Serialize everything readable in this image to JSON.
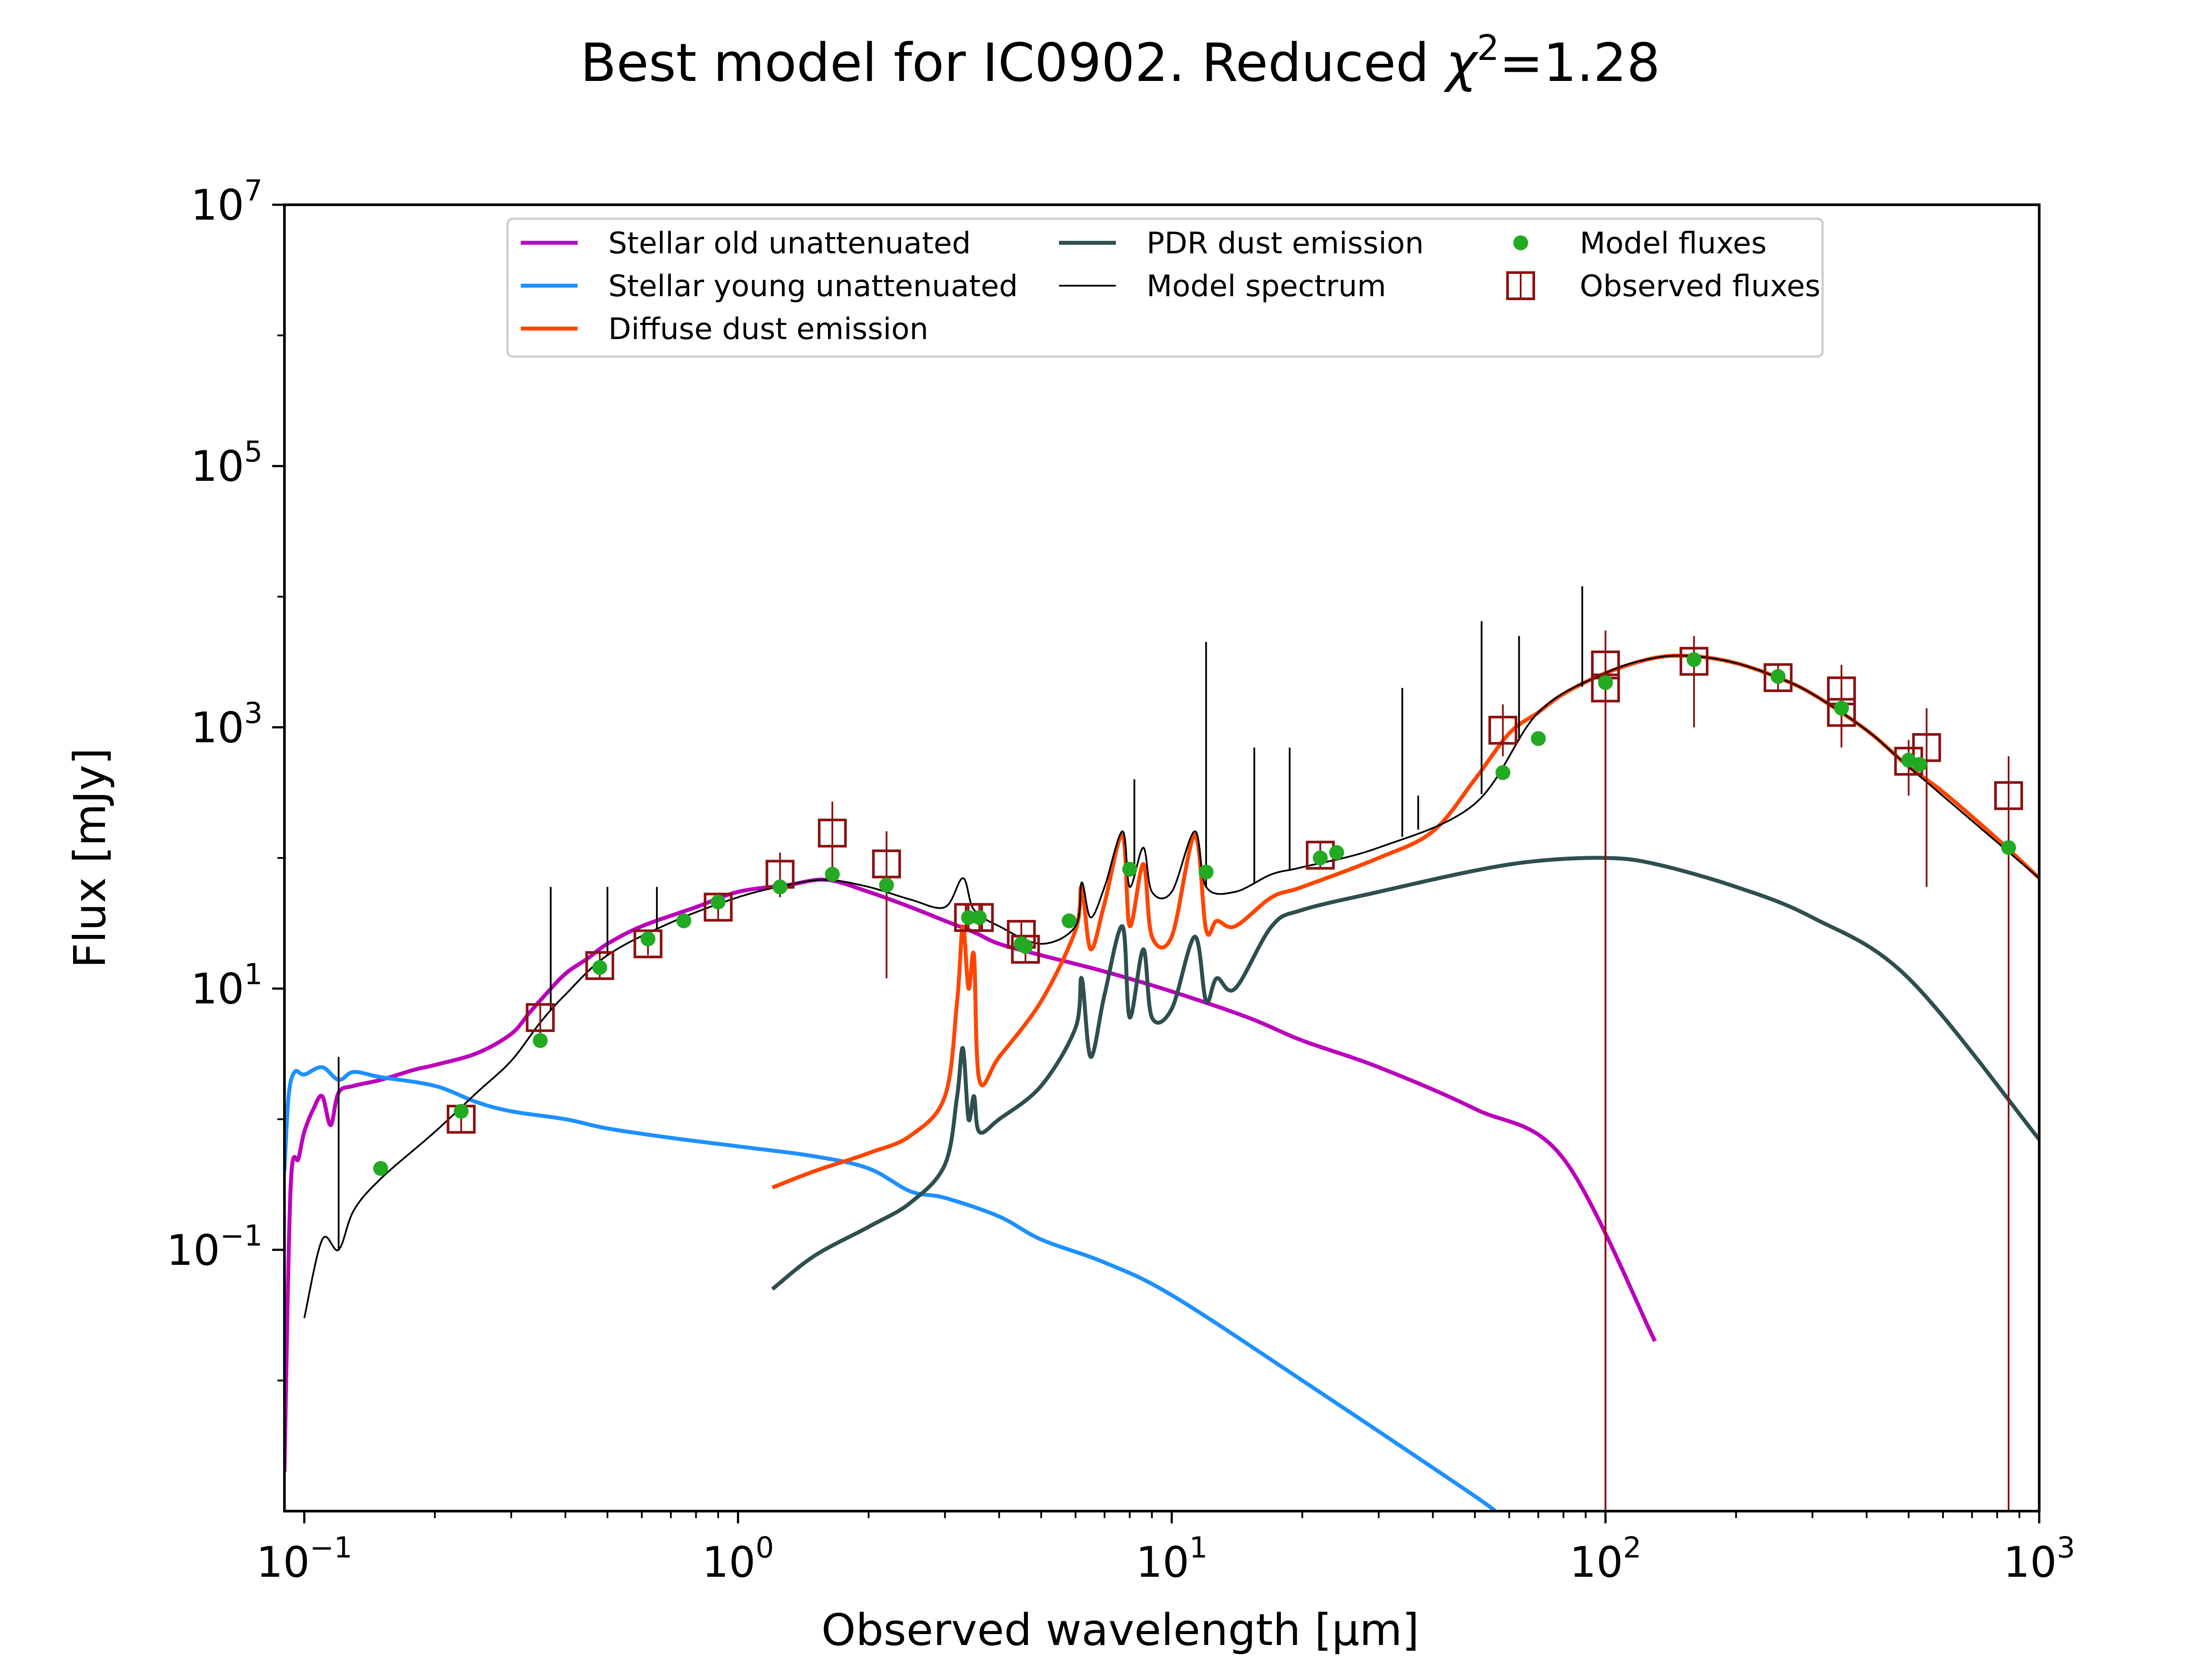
{
  "chart_data": {
    "type": "line",
    "title": "Best model for IC0902. Reduced χ²=1.28",
    "title_main": "Best model for IC0902. Reduced ",
    "title_chi": "χ",
    "title_sup": "2",
    "title_value": "=1.28",
    "xlabel": "Observed wavelength [μm]",
    "ylabel": "Flux [mJy]",
    "xscale": "log",
    "yscale": "log",
    "xlim": [
      0.09,
      1000
    ],
    "ylim": [
      0.001,
      10000000
    ],
    "legend_location": "upper center",
    "grid": false,
    "x_ticks": [
      {
        "value": 0.1,
        "base": "10",
        "exp": "−1"
      },
      {
        "value": 1,
        "base": "10",
        "exp": "0"
      },
      {
        "value": 10,
        "base": "10",
        "exp": "1"
      },
      {
        "value": 100,
        "base": "10",
        "exp": "2"
      },
      {
        "value": 1000,
        "base": "10",
        "exp": "3"
      }
    ],
    "y_ticks": [
      {
        "value": 0.1,
        "base": "10",
        "exp": "−1"
      },
      {
        "value": 10,
        "base": "10",
        "exp": "1"
      },
      {
        "value": 1000,
        "base": "10",
        "exp": "3"
      },
      {
        "value": 100000,
        "base": "10",
        "exp": "5"
      },
      {
        "value": 10000000,
        "base": "10",
        "exp": "7"
      }
    ],
    "legend": [
      {
        "label": "Stellar old unattenuated",
        "kind": "line",
        "color": "#BB00BB"
      },
      {
        "label": "Stellar young unattenuated",
        "kind": "line",
        "color": "#1E90FF"
      },
      {
        "label": "Diffuse dust emission",
        "kind": "line",
        "color": "#FF4500"
      },
      {
        "label": "PDR dust emission",
        "kind": "line",
        "color": "#2F4F4F"
      },
      {
        "label": "Model spectrum",
        "kind": "thinline",
        "color": "#000000"
      },
      {
        "label": "Model fluxes",
        "kind": "dot",
        "color": "#22AA22"
      },
      {
        "label": "Observed fluxes",
        "kind": "square",
        "color": "#8B1010"
      }
    ],
    "series": [
      {
        "name": "Stellar old unattenuated",
        "color": "#BB00BB",
        "x": [
          0.09,
          0.093,
          0.097,
          0.1,
          0.105,
          0.11,
          0.115,
          0.12,
          0.13,
          0.15,
          0.18,
          0.2,
          0.25,
          0.3,
          0.33,
          0.36,
          0.4,
          0.45,
          0.5,
          0.6,
          0.8,
          1.0,
          1.3,
          1.6,
          2.0,
          2.5,
          3.0,
          3.5,
          4.0,
          5.0,
          7.0,
          10,
          15,
          20,
          30,
          50,
          80,
          130
        ],
        "y": [
          0.002,
          0.3,
          0.5,
          0.8,
          1.2,
          1.5,
          0.9,
          1.6,
          1.8,
          2.0,
          2.4,
          2.6,
          3.2,
          4.5,
          6.5,
          9.0,
          13,
          17,
          22,
          30,
          42,
          55,
          62,
          68,
          55,
          42,
          33,
          27,
          22,
          18,
          13.5,
          9.5,
          6.0,
          4.0,
          2.5,
          1.2,
          0.5,
          0.02
        ]
      },
      {
        "name": "Stellar young unattenuated",
        "color": "#1E90FF",
        "x": [
          0.09,
          0.092,
          0.095,
          0.1,
          0.11,
          0.12,
          0.13,
          0.15,
          0.2,
          0.25,
          0.3,
          0.4,
          0.5,
          0.7,
          1.0,
          1.5,
          2.0,
          2.5,
          3.0,
          4.0,
          5.0,
          7.0,
          10,
          20,
          50,
          55
        ],
        "y": [
          0.4,
          1.5,
          2.3,
          2.2,
          2.5,
          2.0,
          2.3,
          2.1,
          1.8,
          1.35,
          1.15,
          1.0,
          0.85,
          0.72,
          0.62,
          0.52,
          0.42,
          0.28,
          0.25,
          0.18,
          0.12,
          0.08,
          0.045,
          0.01,
          0.0013,
          0.001
        ]
      },
      {
        "name": "Diffuse dust emission",
        "color": "#FF4500",
        "x": [
          1.2,
          1.5,
          2.0,
          2.5,
          3.0,
          3.2,
          3.3,
          3.4,
          3.5,
          3.6,
          4.0,
          5.0,
          6.0,
          6.2,
          6.5,
          7.0,
          7.7,
          8.0,
          8.6,
          9.0,
          10,
          11.3,
          12,
          12.7,
          14,
          17,
          20,
          30,
          40,
          50,
          60,
          70,
          80,
          100,
          130,
          160,
          200,
          250,
          300,
          400,
          500,
          600,
          800,
          1000
        ],
        "y": [
          0.3,
          0.4,
          0.55,
          0.75,
          1.5,
          8,
          30,
          10,
          18,
          2,
          3,
          8,
          28,
          60,
          20,
          45,
          150,
          30,
          90,
          25,
          25,
          150,
          28,
          33,
          30,
          50,
          60,
          100,
          160,
          400,
          900,
          1300,
          1800,
          2600,
          3400,
          3500,
          3100,
          2400,
          1800,
          950,
          500,
          320,
          140,
          70
        ]
      },
      {
        "name": "PDR dust emission",
        "color": "#2F4F4F",
        "x": [
          1.2,
          1.5,
          2.0,
          2.5,
          3.0,
          3.2,
          3.3,
          3.4,
          3.5,
          3.6,
          4.0,
          5.0,
          6.0,
          6.2,
          6.5,
          7.0,
          7.7,
          8.0,
          8.6,
          9.0,
          10,
          11.3,
          12,
          12.7,
          14,
          17,
          20,
          30,
          50,
          70,
          100,
          130,
          200,
          300,
          500,
          1000
        ],
        "y": [
          0.05,
          0.09,
          0.15,
          0.23,
          0.45,
          1.5,
          3.5,
          1.0,
          1.5,
          0.8,
          1.0,
          1.8,
          5,
          12,
          3,
          9,
          30,
          6,
          20,
          6,
          7,
          25,
          8,
          12,
          10,
          30,
          40,
          55,
          80,
          95,
          100,
          90,
          60,
          35,
          12,
          0.7
        ]
      },
      {
        "name": "Model spectrum",
        "color": "#000000",
        "x": [
          0.1,
          0.11,
          0.12,
          0.13,
          0.15,
          0.2,
          0.25,
          0.3,
          0.35,
          0.4,
          0.5,
          0.7,
          1.0,
          1.3,
          1.6,
          2.0,
          2.5,
          3.0,
          3.3,
          3.5,
          4.0,
          5.0,
          6.0,
          6.2,
          6.5,
          7.0,
          7.7,
          8.0,
          8.6,
          9.0,
          10,
          11.3,
          12,
          14,
          17,
          20,
          30,
          50,
          70,
          100,
          130,
          160,
          200,
          250,
          300,
          400,
          500,
          1000
        ],
        "y": [
          0.03,
          0.12,
          0.1,
          0.2,
          0.35,
          0.8,
          1.6,
          2.8,
          5.5,
          9,
          18,
          32,
          50,
          62,
          68,
          60,
          48,
          42,
          70,
          40,
          30,
          22,
          30,
          65,
          35,
          60,
          160,
          60,
          120,
          55,
          55,
          160,
          60,
          55,
          75,
          85,
          120,
          260,
          1300,
          2600,
          3400,
          3500,
          3100,
          2400,
          1800,
          950,
          500,
          70
        ]
      }
    ],
    "model_spectrum_lines": [
      {
        "x": 0.12,
        "y": 3.0
      },
      {
        "x": 0.37,
        "y": 60
      },
      {
        "x": 0.5,
        "y": 60
      },
      {
        "x": 0.65,
        "y": 60
      },
      {
        "x": 8.2,
        "y": 400
      },
      {
        "x": 12.0,
        "y": 4500
      },
      {
        "x": 15.5,
        "y": 700
      },
      {
        "x": 18.7,
        "y": 700
      },
      {
        "x": 34.0,
        "y": 2000
      },
      {
        "x": 37.0,
        "y": 300
      },
      {
        "x": 51.8,
        "y": 6500
      },
      {
        "x": 63.2,
        "y": 5000
      },
      {
        "x": 88.4,
        "y": 12000
      }
    ],
    "model_fluxes": {
      "name": "Model fluxes",
      "color": "#22AA22",
      "points": [
        {
          "x": 0.15,
          "y": 0.42
        },
        {
          "x": 0.23,
          "y": 1.15
        },
        {
          "x": 0.35,
          "y": 4.0
        },
        {
          "x": 0.48,
          "y": 14.5
        },
        {
          "x": 0.62,
          "y": 24
        },
        {
          "x": 0.75,
          "y": 33
        },
        {
          "x": 0.9,
          "y": 46
        },
        {
          "x": 1.25,
          "y": 60
        },
        {
          "x": 1.65,
          "y": 75
        },
        {
          "x": 2.2,
          "y": 62
        },
        {
          "x": 3.4,
          "y": 35
        },
        {
          "x": 3.6,
          "y": 35
        },
        {
          "x": 4.5,
          "y": 22
        },
        {
          "x": 4.6,
          "y": 21
        },
        {
          "x": 5.8,
          "y": 33
        },
        {
          "x": 8.0,
          "y": 82
        },
        {
          "x": 12,
          "y": 78
        },
        {
          "x": 22,
          "y": 100
        },
        {
          "x": 24,
          "y": 110
        },
        {
          "x": 58,
          "y": 450
        },
        {
          "x": 70,
          "y": 820
        },
        {
          "x": 100,
          "y": 2200
        },
        {
          "x": 160,
          "y": 3300
        },
        {
          "x": 250,
          "y": 2450
        },
        {
          "x": 350,
          "y": 1400
        },
        {
          "x": 500,
          "y": 560
        },
        {
          "x": 530,
          "y": 520
        },
        {
          "x": 850,
          "y": 120
        }
      ]
    },
    "observed_fluxes": {
      "name": "Observed fluxes",
      "color": "#8B1010",
      "points": [
        {
          "x": 0.23,
          "y": 1.0,
          "ylo": 0.8,
          "yhi": 1.25
        },
        {
          "x": 0.35,
          "y": 6.0,
          "ylo": 4.5,
          "yhi": 7.5
        },
        {
          "x": 0.48,
          "y": 15,
          "ylo": 12,
          "yhi": 19
        },
        {
          "x": 0.62,
          "y": 22,
          "ylo": 18,
          "yhi": 27
        },
        {
          "x": 0.9,
          "y": 42,
          "ylo": 34,
          "yhi": 52
        },
        {
          "x": 1.25,
          "y": 75,
          "ylo": 50,
          "yhi": 110
        },
        {
          "x": 1.65,
          "y": 155,
          "ylo": 70,
          "yhi": 270
        },
        {
          "x": 2.2,
          "y": 90,
          "ylo": 12,
          "yhi": 160
        },
        {
          "x": 3.4,
          "y": 35,
          "ylo": 28,
          "yhi": 44
        },
        {
          "x": 3.6,
          "y": 35,
          "ylo": 28,
          "yhi": 44
        },
        {
          "x": 4.5,
          "y": 26,
          "ylo": 20,
          "yhi": 32
        },
        {
          "x": 4.6,
          "y": 20,
          "ylo": 16,
          "yhi": 25
        },
        {
          "x": 22,
          "y": 105,
          "ylo": 85,
          "yhi": 130
        },
        {
          "x": 58,
          "y": 950,
          "ylo": 600,
          "yhi": 1500
        },
        {
          "x": 100,
          "y": 3000,
          "ylo": 0.001,
          "yhi": 5500
        },
        {
          "x": 100,
          "y": 2000,
          "ylo": 0.001,
          "yhi": 3500
        },
        {
          "x": 160,
          "y": 3200,
          "ylo": 1000,
          "yhi": 5000
        },
        {
          "x": 250,
          "y": 2400,
          "ylo": 1900,
          "yhi": 3000
        },
        {
          "x": 350,
          "y": 1900,
          "ylo": 700,
          "yhi": 3000
        },
        {
          "x": 350,
          "y": 1300,
          "ylo": 800,
          "yhi": 2000
        },
        {
          "x": 500,
          "y": 550,
          "ylo": 300,
          "yhi": 800
        },
        {
          "x": 550,
          "y": 700,
          "ylo": 60,
          "yhi": 1400
        },
        {
          "x": 850,
          "y": 300,
          "ylo": 0.001,
          "yhi": 600
        }
      ]
    }
  }
}
